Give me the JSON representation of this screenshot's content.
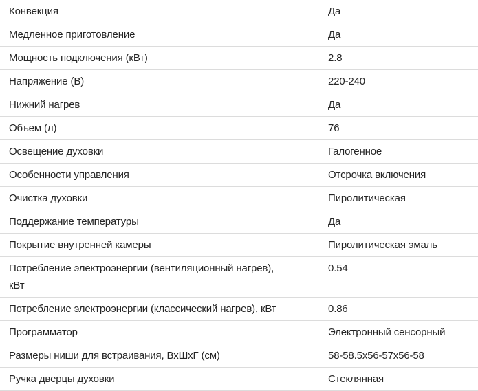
{
  "specs": {
    "rows": [
      {
        "label": "Конвекция",
        "value": "Да"
      },
      {
        "label": "Медленное приготовление",
        "value": "Да"
      },
      {
        "label": "Мощность подключения (кВт)",
        "value": "2.8"
      },
      {
        "label": "Напряжение (В)",
        "value": "220-240"
      },
      {
        "label": "Нижний нагрев",
        "value": "Да"
      },
      {
        "label": "Объем (л)",
        "value": "76"
      },
      {
        "label": "Освещение духовки",
        "value": "Галогенное"
      },
      {
        "label": "Особенности управления",
        "value": "Отсрочка включения"
      },
      {
        "label": "Очистка духовки",
        "value": "Пиролитическая"
      },
      {
        "label": "Поддержание температуры",
        "value": "Да"
      },
      {
        "label": "Покрытие внутренней камеры",
        "value": "Пиролитическая эмаль"
      },
      {
        "label": "Потребление электроэнергии (вентиляционный нагрев),\nкВт",
        "value": "0.54"
      },
      {
        "label": "Потребление электроэнергии (классический нагрев), кВт",
        "value": "0.86"
      },
      {
        "label": "Программатор",
        "value": "Электронный сенсорный"
      },
      {
        "label": "Размеры ниши для встраивания, ВхШхГ (см)",
        "value": "58-58.5х56-57х56-58"
      },
      {
        "label": "Ручка дверцы духовки",
        "value": "Стеклянная"
      }
    ]
  }
}
